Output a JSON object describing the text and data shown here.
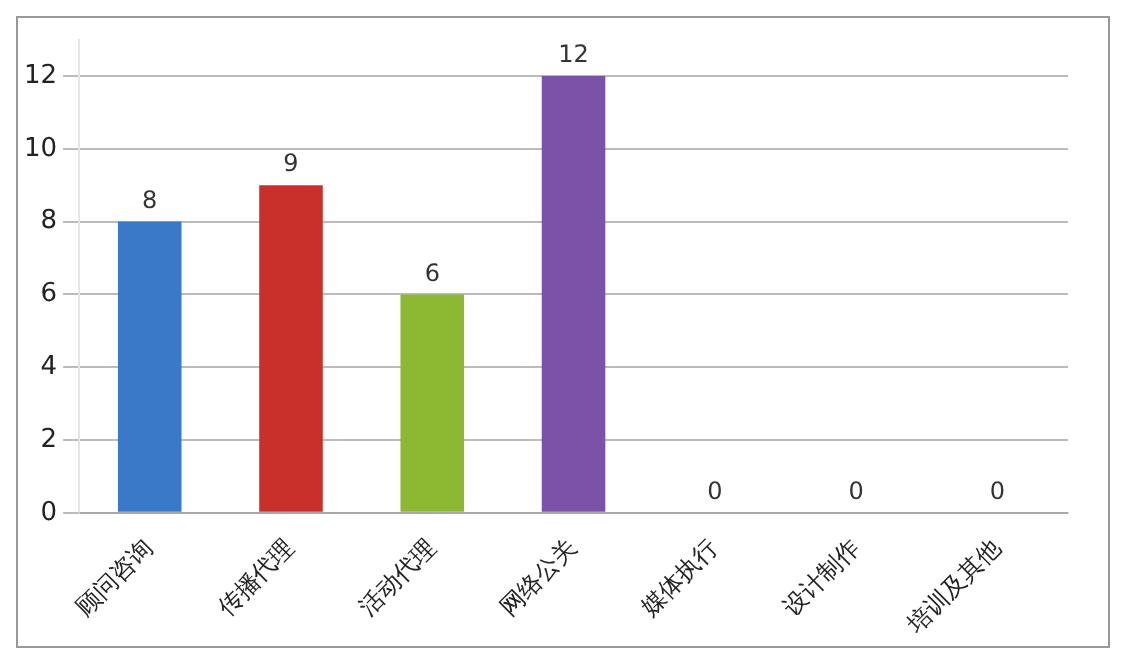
{
  "chart_data": {
    "type": "bar",
    "categories": [
      "顾问咨询",
      "传播代理",
      "活动代理",
      "网络公关",
      "媒体执行",
      "设计制作",
      "培训及其他"
    ],
    "values": [
      8,
      9,
      6,
      12,
      0,
      0,
      0
    ],
    "colors": [
      "#3a78c8",
      "#c9302c",
      "#8cb832",
      "#7a52a8",
      "#2f8a9a",
      "#c86a1a",
      "#2a4a80"
    ],
    "ylim": [
      0,
      13
    ],
    "yticks": [
      0,
      2,
      4,
      6,
      8,
      10,
      12
    ],
    "grid": "y",
    "data_labels": true
  }
}
